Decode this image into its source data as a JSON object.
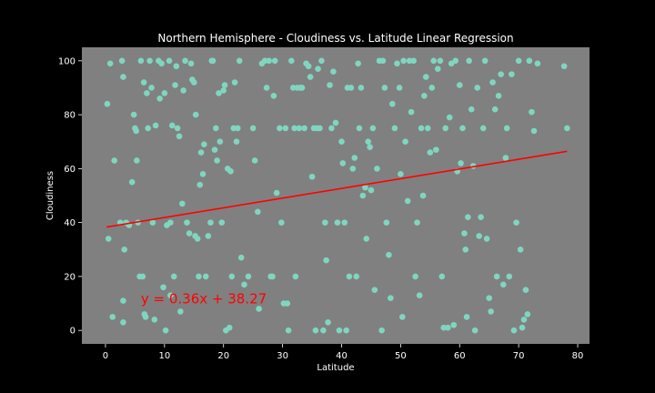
{
  "chart_data": {
    "type": "scatter",
    "title": "Northern Hemisphere - Cloudiness vs. Latitude Linear Regression",
    "xlabel": "Latitude",
    "ylabel": "Cloudiness",
    "xlim": [
      -4,
      82
    ],
    "ylim": [
      -5,
      105
    ],
    "xticks": [
      0,
      10,
      20,
      30,
      40,
      50,
      60,
      70,
      80
    ],
    "yticks": [
      0,
      20,
      40,
      60,
      80,
      100
    ],
    "xtick_labels": [
      "0",
      "10",
      "20",
      "30",
      "40",
      "50",
      "60",
      "70",
      "80"
    ],
    "ytick_labels": [
      "0",
      "20",
      "40",
      "60",
      "80",
      "100"
    ],
    "grid": false,
    "colors": {
      "figure_bg": "#000000",
      "plot_bg": "#808080",
      "points": "#7fd6c0",
      "line": "#ff0000",
      "text": "#ffffff"
    },
    "regression": {
      "slope": 0.36,
      "intercept": 38.27,
      "x_range": [
        0.2,
        78.2
      ],
      "equation": "y = 0.36x + 38.27",
      "equation_pos": [
        6,
        10
      ]
    },
    "points": [
      [
        0.3,
        84
      ],
      [
        0.5,
        34
      ],
      [
        0.8,
        99
      ],
      [
        1.2,
        5
      ],
      [
        1.5,
        63
      ],
      [
        2.5,
        40
      ],
      [
        2.8,
        100
      ],
      [
        3,
        94
      ],
      [
        3.2,
        30
      ],
      [
        3,
        11
      ],
      [
        3,
        3
      ],
      [
        3.5,
        40
      ],
      [
        4,
        39
      ],
      [
        4.5,
        55
      ],
      [
        4.8,
        80
      ],
      [
        5,
        75
      ],
      [
        5.2,
        74
      ],
      [
        5.3,
        63
      ],
      [
        5.5,
        40
      ],
      [
        5.8,
        20
      ],
      [
        6,
        100
      ],
      [
        6.3,
        20
      ],
      [
        6.5,
        92
      ],
      [
        6.8,
        5
      ],
      [
        6.6,
        6
      ],
      [
        7,
        88
      ],
      [
        7.2,
        75
      ],
      [
        7.5,
        100
      ],
      [
        7.8,
        90
      ],
      [
        8,
        40
      ],
      [
        8.3,
        4
      ],
      [
        8.5,
        76
      ],
      [
        9,
        100
      ],
      [
        9.2,
        86
      ],
      [
        9.5,
        99
      ],
      [
        9.8,
        16
      ],
      [
        10,
        88
      ],
      [
        10.2,
        0
      ],
      [
        10.4,
        39
      ],
      [
        10.8,
        100
      ],
      [
        11,
        13
      ],
      [
        11,
        40
      ],
      [
        11.3,
        76
      ],
      [
        11.6,
        20
      ],
      [
        11.8,
        91
      ],
      [
        12,
        98
      ],
      [
        12.2,
        75
      ],
      [
        12.5,
        72
      ],
      [
        12.7,
        7
      ],
      [
        13,
        47
      ],
      [
        13.2,
        89
      ],
      [
        13.5,
        100
      ],
      [
        13.8,
        40
      ],
      [
        14.2,
        36
      ],
      [
        14.5,
        99
      ],
      [
        14.7,
        93
      ],
      [
        15,
        92
      ],
      [
        15.2,
        35
      ],
      [
        15.3,
        80
      ],
      [
        15.6,
        34
      ],
      [
        15.8,
        20
      ],
      [
        16,
        54
      ],
      [
        16.2,
        66
      ],
      [
        16.5,
        58
      ],
      [
        16.7,
        69
      ],
      [
        17,
        20
      ],
      [
        17.4,
        35
      ],
      [
        17.8,
        40
      ],
      [
        18,
        100
      ],
      [
        18.2,
        100
      ],
      [
        18.5,
        67
      ],
      [
        18.7,
        75
      ],
      [
        18.9,
        63
      ],
      [
        19.2,
        88
      ],
      [
        19.4,
        70
      ],
      [
        19.7,
        40
      ],
      [
        20,
        89
      ],
      [
        20.2,
        91
      ],
      [
        20.4,
        0
      ],
      [
        20.7,
        60
      ],
      [
        21,
        1
      ],
      [
        21.2,
        59
      ],
      [
        21.4,
        20
      ],
      [
        21.7,
        75
      ],
      [
        21.9,
        92
      ],
      [
        22.2,
        70
      ],
      [
        22.4,
        75
      ],
      [
        22.7,
        100
      ],
      [
        23,
        27
      ],
      [
        23.5,
        17
      ],
      [
        24.2,
        20
      ],
      [
        25,
        75
      ],
      [
        25.3,
        63
      ],
      [
        25.8,
        44
      ],
      [
        26,
        8
      ],
      [
        26.5,
        99
      ],
      [
        27,
        100
      ],
      [
        27.3,
        90
      ],
      [
        27.7,
        100
      ],
      [
        28,
        20
      ],
      [
        28.3,
        20
      ],
      [
        28.5,
        87
      ],
      [
        28.7,
        100
      ],
      [
        29,
        51
      ],
      [
        29.5,
        75
      ],
      [
        29.8,
        40
      ],
      [
        30.2,
        10
      ],
      [
        30.5,
        75
      ],
      [
        30.8,
        10
      ],
      [
        31,
        0
      ],
      [
        31.5,
        100
      ],
      [
        31.8,
        90
      ],
      [
        32,
        75
      ],
      [
        32.2,
        20
      ],
      [
        32.5,
        90
      ],
      [
        32.8,
        75
      ],
      [
        33,
        90
      ],
      [
        33.3,
        90
      ],
      [
        33.7,
        75
      ],
      [
        34,
        99
      ],
      [
        34.4,
        98
      ],
      [
        34.7,
        94
      ],
      [
        35,
        57
      ],
      [
        35.3,
        75
      ],
      [
        35.6,
        0
      ],
      [
        35.8,
        75
      ],
      [
        36,
        97
      ],
      [
        36.3,
        75
      ],
      [
        36.6,
        100
      ],
      [
        36.9,
        0
      ],
      [
        37.2,
        40
      ],
      [
        37.4,
        26
      ],
      [
        37.7,
        3
      ],
      [
        38,
        91
      ],
      [
        38.3,
        75
      ],
      [
        38.6,
        96
      ],
      [
        39,
        77
      ],
      [
        39.3,
        40
      ],
      [
        39.6,
        0
      ],
      [
        40,
        70
      ],
      [
        40.2,
        62
      ],
      [
        40.5,
        40
      ],
      [
        40.8,
        0
      ],
      [
        41,
        90
      ],
      [
        41.3,
        20
      ],
      [
        41.6,
        90
      ],
      [
        41.9,
        60
      ],
      [
        42.2,
        64
      ],
      [
        42.5,
        20
      ],
      [
        42.8,
        99
      ],
      [
        43,
        75
      ],
      [
        43.3,
        90
      ],
      [
        43.6,
        50
      ],
      [
        44,
        53
      ],
      [
        44.2,
        34
      ],
      [
        44.5,
        70
      ],
      [
        44.8,
        68
      ],
      [
        45,
        52
      ],
      [
        45.3,
        75
      ],
      [
        45.6,
        15
      ],
      [
        46,
        60
      ],
      [
        46.4,
        100
      ],
      [
        46.8,
        0
      ],
      [
        47,
        100
      ],
      [
        47.3,
        90
      ],
      [
        47.6,
        40
      ],
      [
        48,
        28
      ],
      [
        48.3,
        12
      ],
      [
        48.6,
        84
      ],
      [
        49,
        75
      ],
      [
        49.4,
        99
      ],
      [
        49.8,
        90
      ],
      [
        50,
        58
      ],
      [
        50.3,
        5
      ],
      [
        50.5,
        100
      ],
      [
        50.8,
        70
      ],
      [
        51.2,
        48
      ],
      [
        51.5,
        100
      ],
      [
        51.8,
        81
      ],
      [
        52.2,
        100
      ],
      [
        52.5,
        20
      ],
      [
        52.8,
        40
      ],
      [
        53.2,
        13
      ],
      [
        53.5,
        75
      ],
      [
        53.8,
        50
      ],
      [
        54,
        87
      ],
      [
        54.3,
        94
      ],
      [
        54.6,
        75
      ],
      [
        55,
        66
      ],
      [
        55.3,
        90
      ],
      [
        55.6,
        100
      ],
      [
        56,
        67
      ],
      [
        56.3,
        97
      ],
      [
        56.7,
        100
      ],
      [
        57,
        20
      ],
      [
        57.3,
        1
      ],
      [
        57.6,
        75
      ],
      [
        58,
        1
      ],
      [
        58.3,
        79
      ],
      [
        58.6,
        99
      ],
      [
        59,
        2
      ],
      [
        59.3,
        100
      ],
      [
        59.6,
        59
      ],
      [
        60,
        91
      ],
      [
        60.2,
        62
      ],
      [
        60.5,
        75
      ],
      [
        60.8,
        36
      ],
      [
        61,
        30
      ],
      [
        61.2,
        5
      ],
      [
        61.4,
        42
      ],
      [
        61.6,
        100
      ],
      [
        62,
        82
      ],
      [
        62.3,
        61
      ],
      [
        62.6,
        0
      ],
      [
        63,
        90
      ],
      [
        63.3,
        35
      ],
      [
        63.6,
        42
      ],
      [
        64,
        75
      ],
      [
        64.3,
        100
      ],
      [
        64.6,
        34
      ],
      [
        65,
        12
      ],
      [
        65.3,
        7
      ],
      [
        65.6,
        92
      ],
      [
        66,
        82
      ],
      [
        66.3,
        20
      ],
      [
        66.6,
        87
      ],
      [
        67,
        95
      ],
      [
        67.4,
        17
      ],
      [
        67.8,
        64
      ],
      [
        68,
        75
      ],
      [
        68.4,
        20
      ],
      [
        68.8,
        95
      ],
      [
        69.2,
        0
      ],
      [
        69.6,
        40
      ],
      [
        70,
        100
      ],
      [
        70.3,
        30
      ],
      [
        70.6,
        1
      ],
      [
        70.9,
        4
      ],
      [
        71.2,
        15
      ],
      [
        71.5,
        6
      ],
      [
        71.8,
        100
      ],
      [
        72.2,
        81
      ],
      [
        72.6,
        74
      ],
      [
        73.2,
        99
      ],
      [
        77.7,
        98
      ],
      [
        78.2,
        75
      ]
    ]
  }
}
